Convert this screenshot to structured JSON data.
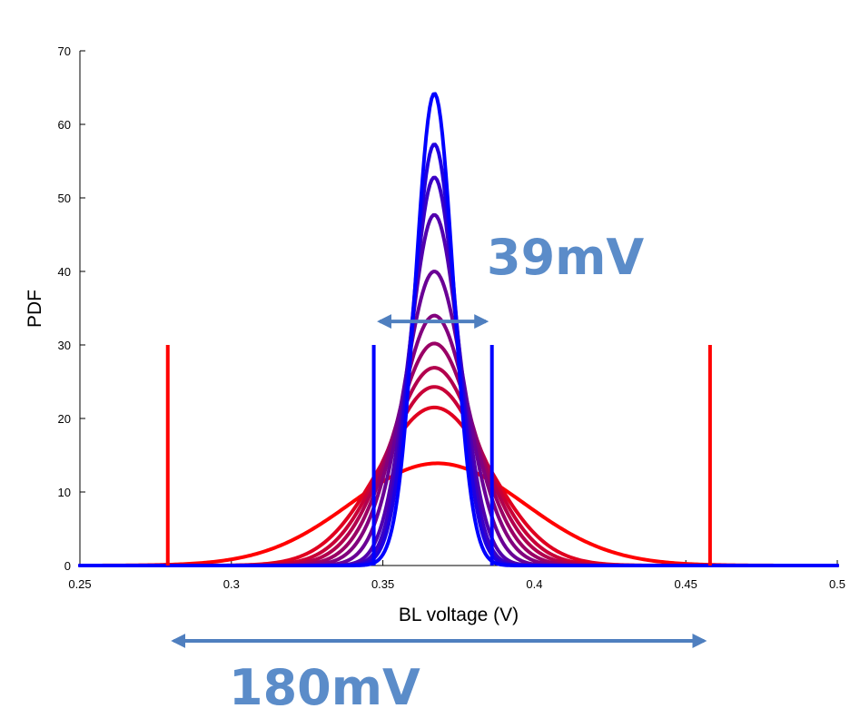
{
  "chart_data": {
    "type": "line",
    "xlabel": "BL voltage (V)",
    "ylabel": "PDF",
    "xlim": [
      0.25,
      0.5
    ],
    "ylim": [
      0,
      70
    ],
    "x_ticks": [
      "0.25",
      "0.3",
      "0.35",
      "0.4",
      "0.45",
      "0.5"
    ],
    "y_ticks": [
      "0",
      "10",
      "20",
      "30",
      "40",
      "50",
      "60",
      "70"
    ],
    "grid": false,
    "legend": "none",
    "series": [
      {
        "peak_x": 0.367,
        "peak_pdf": 64.2,
        "sigma": 0.0062,
        "color": "#0000ff"
      },
      {
        "peak_x": 0.367,
        "peak_pdf": 57.3,
        "sigma": 0.007,
        "color": "#1f00e0"
      },
      {
        "peak_x": 0.367,
        "peak_pdf": 52.8,
        "sigma": 0.0076,
        "color": "#3a00c5"
      },
      {
        "peak_x": 0.367,
        "peak_pdf": 47.7,
        "sigma": 0.0084,
        "color": "#5200ad"
      },
      {
        "peak_x": 0.367,
        "peak_pdf": 40.0,
        "sigma": 0.01,
        "color": "#6a0095"
      },
      {
        "peak_x": 0.367,
        "peak_pdf": 34.0,
        "sigma": 0.0117,
        "color": "#82007d"
      },
      {
        "peak_x": 0.367,
        "peak_pdf": 30.2,
        "sigma": 0.0132,
        "color": "#9a0065"
      },
      {
        "peak_x": 0.367,
        "peak_pdf": 26.9,
        "sigma": 0.0148,
        "color": "#b2004d"
      },
      {
        "peak_x": 0.367,
        "peak_pdf": 24.3,
        "sigma": 0.0164,
        "color": "#c80037"
      },
      {
        "peak_x": 0.367,
        "peak_pdf": 21.5,
        "sigma": 0.0185,
        "color": "#e0001f"
      },
      {
        "peak_x": 0.368,
        "peak_pdf": 13.9,
        "sigma": 0.0287,
        "color": "#ff0000"
      }
    ],
    "bounds": [
      {
        "x": 0.347,
        "height": 30,
        "color": "#0000ff"
      },
      {
        "x": 0.386,
        "height": 30,
        "color": "#0000ff"
      },
      {
        "x": 0.279,
        "height": 30,
        "color": "#ff0000"
      },
      {
        "x": 0.458,
        "height": 30,
        "color": "#ff0000"
      }
    ],
    "annotations": [
      {
        "text": "39mV",
        "color": "#5b8cc9",
        "arrow_x": [
          0.349,
          0.384
        ],
        "arrow_pdf": 33.2
      },
      {
        "text": "180mV",
        "color": "#5b8cc9",
        "arrow_x": [
          0.281,
          0.456
        ]
      }
    ]
  }
}
